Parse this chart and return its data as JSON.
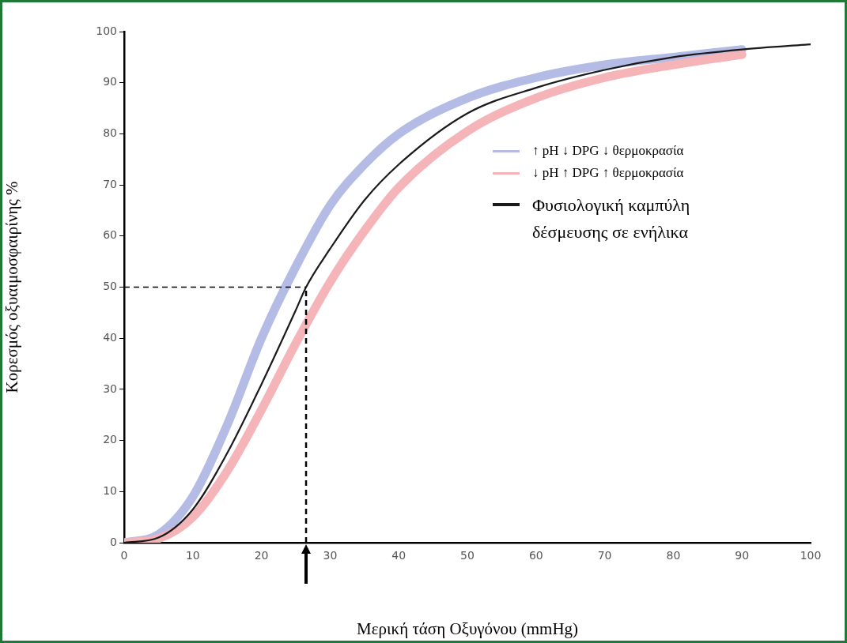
{
  "chart_data": {
    "type": "line",
    "xlabel": "Μερική τάση Οξυγόνου (mmHg)",
    "ylabel": "Κορεσμός οξυαιμοσφαιρίνης %",
    "xlim": [
      0,
      100
    ],
    "ylim": [
      0,
      100
    ],
    "xticks": [
      0,
      10,
      20,
      30,
      40,
      50,
      60,
      70,
      80,
      90,
      100
    ],
    "yticks": [
      0,
      10,
      20,
      30,
      40,
      50,
      60,
      70,
      80,
      90,
      100
    ],
    "grid": false,
    "legend": "right",
    "marker": "none",
    "line_style": "solid",
    "series": [
      {
        "name": "↑ pH ↓ DPG ↓ θερμοκρασία",
        "color": "#b4bce6",
        "x": [
          0,
          5,
          10,
          15,
          20,
          25,
          30,
          35,
          40,
          50,
          60,
          70,
          80,
          90
        ],
        "values": [
          0,
          1.6,
          9,
          23,
          40,
          54,
          66,
          74,
          80,
          87,
          91,
          93.5,
          95,
          96.5
        ]
      },
      {
        "name": "↓ pH ↑ DPG ↑ θερμοκρασία",
        "color": "#f4b4b8",
        "x": [
          0,
          5,
          10,
          15,
          20,
          25,
          30,
          35,
          40,
          50,
          60,
          70,
          80,
          90
        ],
        "values": [
          0,
          0.8,
          5,
          14,
          26,
          39,
          51,
          61,
          69.5,
          80.5,
          87,
          91,
          93.5,
          95.5
        ]
      },
      {
        "name": "Φυσιολογική καμπύλη δέσμευσης σε ενήλικα",
        "color": "#1a1a1a",
        "x": [
          0,
          5,
          10,
          15,
          20,
          25,
          26.5,
          30,
          35,
          40,
          50,
          60,
          70,
          80,
          90,
          100
        ],
        "values": [
          0,
          1,
          6.5,
          17.5,
          31,
          45.5,
          50,
          57.5,
          67,
          74,
          84,
          89,
          92.5,
          95,
          96.5,
          97.5
        ]
      }
    ],
    "ref_lines": [
      {
        "axis": "y",
        "value": 50,
        "line_style": "dashed",
        "color": "#000000"
      },
      {
        "axis": "x",
        "value": 26.5,
        "line_style": "dashed",
        "color": "#000000"
      }
    ]
  }
}
